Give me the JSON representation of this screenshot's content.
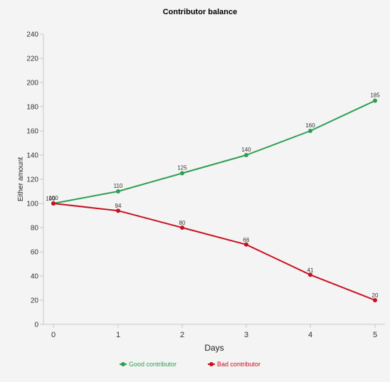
{
  "chart_data": {
    "type": "line",
    "title": "Contributor balance",
    "xlabel": "Days",
    "ylabel": "Either amount",
    "x": [
      0,
      1,
      2,
      3,
      4,
      5
    ],
    "x_tick_labels": [
      "0",
      "1",
      "2",
      "3",
      "4",
      "5"
    ],
    "ylim": [
      0,
      240
    ],
    "y_ticks": [
      0,
      20,
      40,
      60,
      80,
      100,
      120,
      140,
      160,
      180,
      200,
      220,
      240
    ],
    "y_tick_labels": [
      "0",
      "20",
      "40",
      "60",
      "80",
      "100",
      "120",
      "140",
      "160",
      "180",
      "200",
      "220",
      "240"
    ],
    "grid": false,
    "legend_position": "bottom",
    "series": [
      {
        "name": "Good contributor",
        "color": "#2e9e52",
        "values": [
          100,
          110,
          125,
          140,
          160,
          185
        ],
        "labels": [
          "100",
          "110",
          "125",
          "140",
          "160",
          "185"
        ]
      },
      {
        "name": "Bad contributor",
        "color": "#c8101e",
        "values": [
          100,
          94,
          80,
          66,
          41,
          20
        ],
        "labels": [
          "100",
          "94",
          "80",
          "66",
          "41",
          "20"
        ]
      }
    ]
  }
}
